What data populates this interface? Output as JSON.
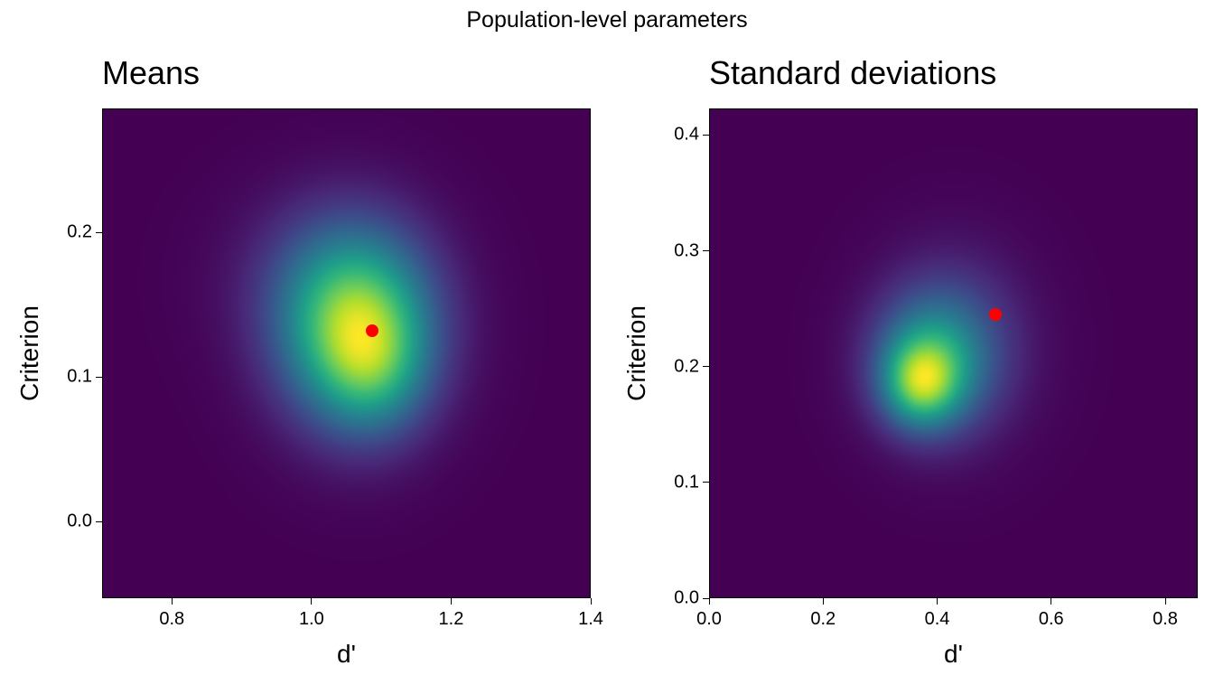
{
  "suptitle": "Population-level parameters",
  "chart_data": [
    {
      "type": "heatmap",
      "title": "Means",
      "xlabel": "d'",
      "ylabel": "Criterion",
      "xlim": [
        0.7,
        1.4
      ],
      "ylim": [
        -0.053,
        0.286
      ],
      "xticks": [
        "0.8",
        "1.0",
        "1.2",
        "1.4"
      ],
      "xtick_values": [
        0.8,
        1.0,
        1.2,
        1.4
      ],
      "yticks": [
        "0.0",
        "0.1",
        "0.2"
      ],
      "ytick_values": [
        0.0,
        0.1,
        0.2
      ],
      "colormap": "viridis",
      "density_components": [
        {
          "mx": 1.065,
          "my": 0.133,
          "sx": 0.075,
          "sy": 0.045,
          "w": 1.0
        },
        {
          "mx": 1.09,
          "my": 0.105,
          "sx": 0.05,
          "sy": 0.03,
          "w": 0.25
        },
        {
          "mx": 1.02,
          "my": 0.17,
          "sx": 0.09,
          "sy": 0.04,
          "w": 0.15
        }
      ],
      "true_value": {
        "x": 1.087,
        "y": 0.132,
        "color": "#ff0000"
      }
    },
    {
      "type": "heatmap",
      "title": "Standard deviations",
      "xlabel": "d'",
      "ylabel": "Criterion",
      "xlim": [
        0.0,
        0.857
      ],
      "ylim": [
        0.0,
        0.423
      ],
      "xticks": [
        "0.0",
        "0.2",
        "0.4",
        "0.6",
        "0.8"
      ],
      "xtick_values": [
        0.0,
        0.2,
        0.4,
        0.6,
        0.8
      ],
      "yticks": [
        "0.0",
        "0.1",
        "0.2",
        "0.3",
        "0.4"
      ],
      "ytick_values": [
        0.0,
        0.1,
        0.2,
        0.3,
        0.4
      ],
      "colormap": "viridis",
      "density_components": [
        {
          "mx": 0.37,
          "my": 0.186,
          "sx": 0.045,
          "sy": 0.025,
          "w": 0.7
        },
        {
          "mx": 0.39,
          "my": 0.205,
          "sx": 0.07,
          "sy": 0.04,
          "w": 0.6
        },
        {
          "mx": 0.43,
          "my": 0.22,
          "sx": 0.09,
          "sy": 0.055,
          "w": 0.25
        }
      ],
      "true_value": {
        "x": 0.502,
        "y": 0.245,
        "color": "#ff0000"
      }
    }
  ]
}
